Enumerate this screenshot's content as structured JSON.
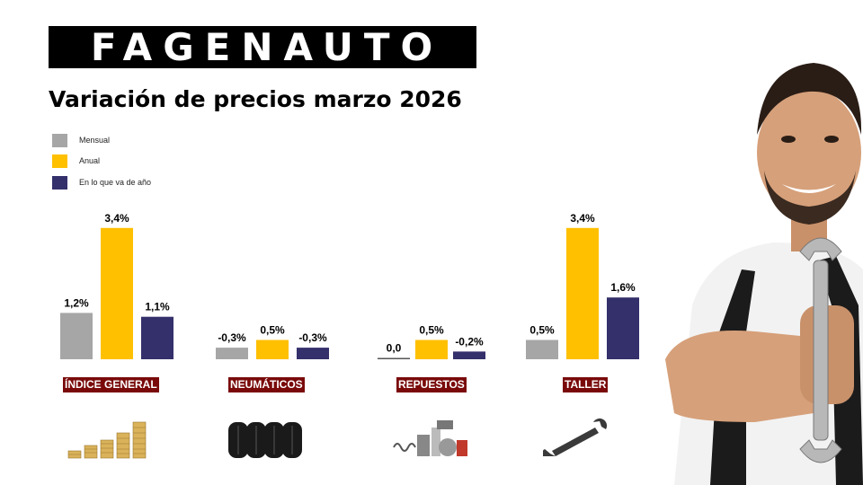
{
  "brand": {
    "logo_text": "FAGENAUTO"
  },
  "title": "Variación de precios marzo 2026",
  "colors": {
    "mensual": "#A6A6A6",
    "anual": "#FFC000",
    "ytd": "#34306B",
    "label_bg": "#7A0A0A"
  },
  "chart_data": {
    "type": "bar",
    "title": "Variación de precios marzo 2026",
    "categories": [
      "ÍNDICE GENERAL",
      "NEUMÁTICOS",
      "REPUESTOS",
      "TALLER"
    ],
    "series": [
      {
        "name": "Mensual",
        "values": [
          1.2,
          -0.3,
          0.0,
          0.5
        ],
        "labels": [
          "1,2%",
          "-0,3%",
          "0,0",
          "0,5%"
        ]
      },
      {
        "name": "Anual",
        "values": [
          3.4,
          0.5,
          0.5,
          3.4
        ],
        "labels": [
          "3,4%",
          "0,5%",
          "0,5%",
          "3,4%"
        ]
      },
      {
        "name": "En lo que va de año",
        "values": [
          1.1,
          -0.3,
          -0.2,
          1.6
        ],
        "labels": [
          "1,1%",
          "-0,3%",
          "-0,2%",
          "1,6%"
        ]
      }
    ],
    "legend_position": "top-left",
    "grid": false
  },
  "icons": [
    "coins-stack-icon",
    "tires-icon",
    "auto-parts-icon",
    "wrench-icon"
  ]
}
